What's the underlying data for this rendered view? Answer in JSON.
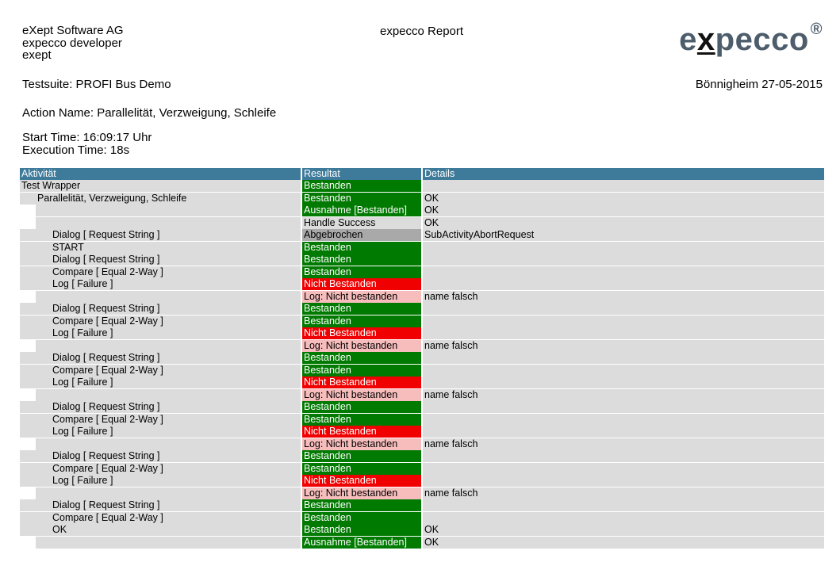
{
  "header": {
    "company_lines": [
      "eXept Software AG",
      "expecco developer",
      "exept"
    ],
    "report_title": "expecco Report",
    "logo": {
      "pre": "e",
      "mark": "x",
      "post": "pecco",
      "reg": "®"
    },
    "testsuite": "Testsuite: PROFI Bus Demo",
    "place_date": "Bönnigheim 27-05-2015",
    "action_name": "Action Name: Parallelität, Verzweigung, Schleife",
    "start_time": "Start Time: 16:09:17 Uhr",
    "execution_time": "Execution Time: 18s"
  },
  "table": {
    "columns": [
      "Aktivität",
      "Resultat",
      "Details"
    ],
    "rows": [
      {
        "activity": "Test Wrapper",
        "level": 0,
        "result": "Bestanden",
        "status": "pass",
        "details": ""
      },
      {
        "activity": "Parallelität, Verzweigung, Schleife",
        "level": 1,
        "result": "Bestanden",
        "status": "pass",
        "details": "OK"
      },
      {
        "activity": "",
        "level": 1,
        "result": "Ausnahme [Bestanden]",
        "status": "pass",
        "details": "OK"
      },
      {
        "activity": "",
        "level": 1,
        "result": "Handle Success",
        "status": "none",
        "details": "OK"
      },
      {
        "activity": "Dialog [ Request String ]",
        "level": 2,
        "result": "Abgebrochen",
        "status": "abort",
        "details": "SubActivityAbortRequest"
      },
      {
        "activity": "START",
        "level": 2,
        "result": "Bestanden",
        "status": "pass",
        "details": ""
      },
      {
        "activity": "Dialog [ Request String ]",
        "level": 2,
        "result": "Bestanden",
        "status": "pass",
        "details": ""
      },
      {
        "activity": "Compare [ Equal 2-Way ]",
        "level": 2,
        "result": "Bestanden",
        "status": "pass",
        "details": ""
      },
      {
        "activity": "Log [ Failure ]",
        "level": 2,
        "result": "Nicht Bestanden",
        "status": "fail",
        "details": ""
      },
      {
        "activity": "",
        "level": 2,
        "result": "Log: Nicht bestanden",
        "status": "warn",
        "details": "name falsch"
      },
      {
        "activity": "Dialog [ Request String ]",
        "level": 2,
        "result": "Bestanden",
        "status": "pass",
        "details": ""
      },
      {
        "activity": "Compare [ Equal 2-Way ]",
        "level": 2,
        "result": "Bestanden",
        "status": "pass",
        "details": ""
      },
      {
        "activity": "Log [ Failure ]",
        "level": 2,
        "result": "Nicht Bestanden",
        "status": "fail",
        "details": ""
      },
      {
        "activity": "",
        "level": 2,
        "result": "Log: Nicht bestanden",
        "status": "warn",
        "details": "name falsch"
      },
      {
        "activity": "Dialog [ Request String ]",
        "level": 2,
        "result": "Bestanden",
        "status": "pass",
        "details": ""
      },
      {
        "activity": "Compare [ Equal 2-Way ]",
        "level": 2,
        "result": "Bestanden",
        "status": "pass",
        "details": ""
      },
      {
        "activity": "Log [ Failure ]",
        "level": 2,
        "result": "Nicht Bestanden",
        "status": "fail",
        "details": ""
      },
      {
        "activity": "",
        "level": 2,
        "result": "Log: Nicht bestanden",
        "status": "warn",
        "details": "name falsch"
      },
      {
        "activity": "Dialog [ Request String ]",
        "level": 2,
        "result": "Bestanden",
        "status": "pass",
        "details": ""
      },
      {
        "activity": "Compare [ Equal 2-Way ]",
        "level": 2,
        "result": "Bestanden",
        "status": "pass",
        "details": ""
      },
      {
        "activity": "Log [ Failure ]",
        "level": 2,
        "result": "Nicht Bestanden",
        "status": "fail",
        "details": ""
      },
      {
        "activity": "",
        "level": 2,
        "result": "Log: Nicht bestanden",
        "status": "warn",
        "details": "name falsch"
      },
      {
        "activity": "Dialog [ Request String ]",
        "level": 2,
        "result": "Bestanden",
        "status": "pass",
        "details": ""
      },
      {
        "activity": "Compare [ Equal 2-Way ]",
        "level": 2,
        "result": "Bestanden",
        "status": "pass",
        "details": ""
      },
      {
        "activity": "Log [ Failure ]",
        "level": 2,
        "result": "Nicht Bestanden",
        "status": "fail",
        "details": ""
      },
      {
        "activity": "",
        "level": 2,
        "result": "Log: Nicht bestanden",
        "status": "warn",
        "details": "name falsch"
      },
      {
        "activity": "Dialog [ Request String ]",
        "level": 2,
        "result": "Bestanden",
        "status": "pass",
        "details": ""
      },
      {
        "activity": "Compare [ Equal 2-Way ]",
        "level": 2,
        "result": "Bestanden",
        "status": "pass",
        "details": ""
      },
      {
        "activity": "OK",
        "level": 2,
        "result": "Bestanden",
        "status": "pass",
        "details": "OK"
      },
      {
        "activity": "",
        "level": 2,
        "result": "Ausnahme [Bestanden]",
        "status": "pass",
        "details": "OK"
      }
    ]
  },
  "colors": {
    "header_bar": "#3e7a9a",
    "pass": "#007a00",
    "fail": "#f00000",
    "abort": "#a9a9a9",
    "warn": "#f7bcbc",
    "row_bg": "#dcdcdc",
    "logo": "#4d5d6b"
  }
}
